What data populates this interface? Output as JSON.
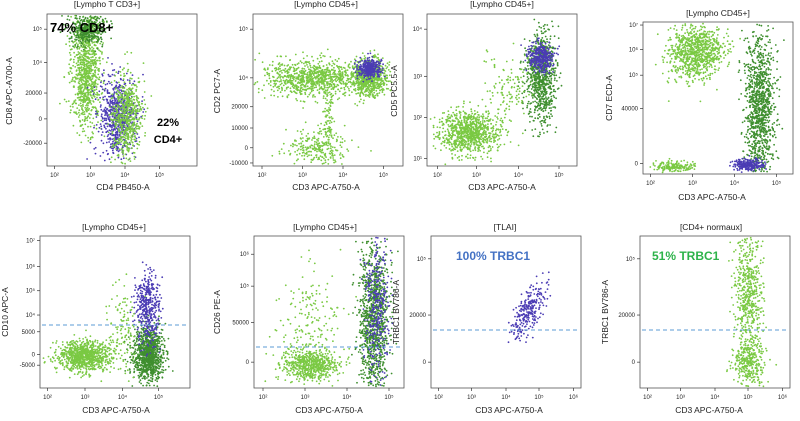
{
  "colors": {
    "green": "#7ac943",
    "dark_green": "#3f8f2f",
    "purple": "#4b3cb4",
    "dashed_line": "#5b9bd5",
    "highlight_blue": "#4472c4",
    "highlight_green": "#2db34a",
    "axis": "#222222"
  },
  "chart_data": [
    {
      "type": "scatter",
      "title": "[Lympho T CD3+]",
      "xlabel": "CD4 PB450-A",
      "ylabel": "CD8 APC-A700-A",
      "x_scale": "log",
      "y_scale": "biexponential",
      "x_ticks": [
        "10²",
        "10³",
        "10⁴",
        "10⁵"
      ],
      "y_ticks": [
        "-20000",
        "0",
        "20000",
        "10⁴",
        "10⁵"
      ],
      "annotations": [
        "74% CD8+",
        "22%",
        "CD4+"
      ],
      "populations": [
        {
          "color": "green",
          "x_center": "10³ (CD4-)",
          "y_center": "10⁵ (CD8+)",
          "share_pct": 74
        },
        {
          "color": "purple",
          "x_center": "10⁴ (CD4+)",
          "y_center": "0 (CD8-)",
          "share_pct": 22
        },
        {
          "color": "green",
          "x_center": "10⁴ (CD4+)",
          "y_center": "0 (CD8-)"
        }
      ]
    },
    {
      "type": "scatter",
      "title": "[Lympho CD45+]",
      "xlabel": "CD3 APC-A750-A",
      "ylabel": "CD2 PC7-A",
      "x_ticks": [
        "10²",
        "10³",
        "10⁴",
        "10⁵"
      ],
      "y_ticks": [
        "-10000",
        "0",
        "10000",
        "20000",
        "10⁴",
        "10⁵"
      ],
      "populations": [
        {
          "color": "green",
          "x_range": "10²–10⁴",
          "y_center": "10⁵"
        },
        {
          "color": "green",
          "x_range": "10⁴–10⁵",
          "y_center": "10⁵"
        },
        {
          "color": "purple",
          "x_center": "10⁴·⁵",
          "y_center": "10⁵"
        }
      ]
    },
    {
      "type": "scatter",
      "title": "[Lympho CD45+]",
      "xlabel": "CD3 APC-A750-A",
      "ylabel": "CD5 PC5.5-A",
      "x_ticks": [
        "10²",
        "10³",
        "10⁴",
        "10⁵"
      ],
      "y_ticks": [
        "10¹",
        "10²",
        "10³",
        "10⁴"
      ],
      "populations": [
        {
          "color": "green",
          "x_center": "10²·⁵",
          "y_center": "10²"
        },
        {
          "color": "green",
          "x_center": "10⁴·⁵",
          "y_center": "10³"
        },
        {
          "color": "purple",
          "x_center": "10⁴·⁵",
          "y_center": "10³·⁸"
        }
      ]
    },
    {
      "type": "scatter",
      "title": "[Lympho CD45+]",
      "xlabel": "CD3 APC-A750-A",
      "ylabel": "CD7 ECD-A",
      "x_ticks": [
        "10²",
        "10³",
        "10⁴",
        "10⁵"
      ],
      "y_ticks": [
        "0",
        "40000",
        "10⁵",
        "10⁶",
        "10⁷"
      ],
      "populations": [
        {
          "color": "green",
          "x_center": "10³",
          "y_center": "10⁵"
        },
        {
          "color": "green",
          "x_center": "10⁴·⁵",
          "y_range": "0–10⁵"
        },
        {
          "color": "purple",
          "x_center": "10⁴·³",
          "y_center": "0"
        }
      ]
    },
    {
      "type": "scatter",
      "title": "[Lympho CD45+]",
      "xlabel": "CD3 APC-A750-A",
      "ylabel": "CD10 APC-A",
      "x_ticks": [
        "10²",
        "10³",
        "10⁴",
        "10⁵"
      ],
      "y_ticks": [
        "-5000",
        "0",
        "5000",
        "10⁴",
        "10⁵",
        "10⁶",
        "10⁷"
      ],
      "threshold_line": "dashed",
      "populations": [
        {
          "color": "green",
          "x_center": "10³",
          "y_center": "0"
        },
        {
          "color": "green",
          "x_center": "10⁴·⁵",
          "y_center": "0"
        },
        {
          "color": "purple",
          "x_center": "10⁴·⁵",
          "y_center": "10⁵"
        }
      ]
    },
    {
      "type": "scatter",
      "title": "[Lympho CD45+]",
      "xlabel": "CD3 APC-A750-A",
      "ylabel": "CD26 PE-A",
      "x_ticks": [
        "10²",
        "10³",
        "10⁴",
        "10⁵"
      ],
      "y_ticks": [
        "0",
        "50000",
        "10⁵",
        "10⁶"
      ],
      "threshold_line": "dashed",
      "populations": [
        {
          "color": "green",
          "x_center": "10²·⁸",
          "y_center": "0"
        },
        {
          "color": "green",
          "x_center": "10⁴·⁵",
          "y_range": "0–10⁶"
        },
        {
          "color": "purple",
          "x_center": "10⁴·⁵",
          "y_range": "0–10⁶"
        }
      ]
    },
    {
      "type": "scatter",
      "title": "[TLAI]",
      "xlabel": "CD3 APC-A750-A",
      "ylabel": "TRBC1 BV786-A",
      "x_ticks": [
        "10²",
        "10³",
        "10⁴",
        "10⁵",
        "10⁶"
      ],
      "y_ticks": [
        "0",
        "20000",
        "10⁵"
      ],
      "threshold_line": "dashed",
      "annotations": [
        "100% TRBC1"
      ],
      "populations": [
        {
          "color": "purple",
          "x_center": "10⁴·⁶",
          "y_center": "20000–10⁵",
          "share_pct": 100
        }
      ]
    },
    {
      "type": "scatter",
      "title": "[CD4+ normaux]",
      "xlabel": "CD3 APC-A750-A",
      "ylabel": "TRBC1 BV786-A",
      "x_ticks": [
        "10²",
        "10³",
        "10⁴",
        "10⁵",
        "10⁶"
      ],
      "y_ticks": [
        "0",
        "20000",
        "10⁵"
      ],
      "threshold_line": "dashed",
      "annotations": [
        "51% TRBC1"
      ],
      "populations": [
        {
          "color": "green",
          "x_center": "10⁴·⁵",
          "y_center": "10⁵ (TRBC1+)",
          "share_pct": 51
        },
        {
          "color": "green",
          "x_center": "10⁴·⁵",
          "y_center": "0 (TRBC1-)"
        }
      ]
    }
  ]
}
